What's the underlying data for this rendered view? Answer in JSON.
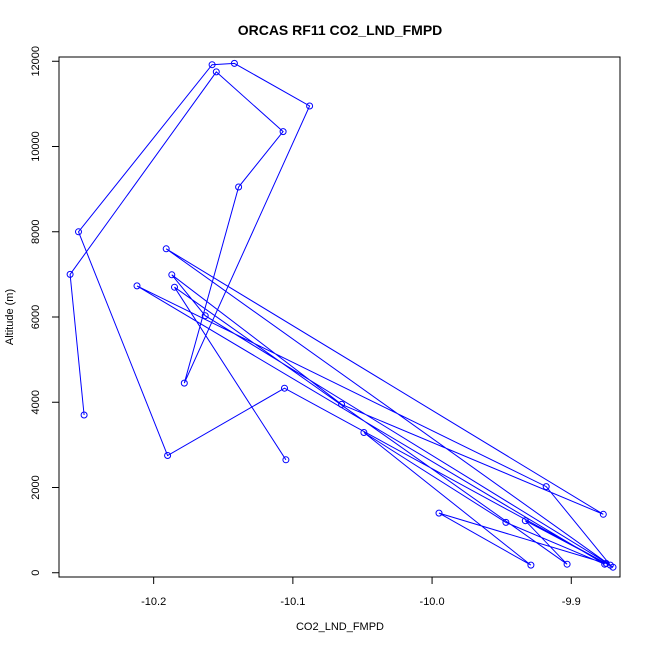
{
  "chart_data": {
    "type": "line",
    "title": "ORCAS RF11 CO2_LND_FMPD",
    "xlabel": "CO2_LND_FMPD",
    "ylabel": "Altitude (m)",
    "xlim": [
      -10.268,
      -9.865
    ],
    "ylim": [
      -100,
      12100
    ],
    "x_ticks": [
      -10.2,
      -10.1,
      -10.0,
      -9.9
    ],
    "x_tick_labels": [
      "-10.2",
      "-10.1",
      "-10.0",
      "-9.9"
    ],
    "y_ticks": [
      0,
      2000,
      4000,
      6000,
      8000,
      10000,
      12000
    ],
    "y_tick_labels": [
      "0",
      "2000",
      "4000",
      "6000",
      "8000",
      "10000",
      "12000"
    ],
    "grid": false,
    "line_color": "#0000ff",
    "marker": "open-circle",
    "series": [
      {
        "x": [
          -10.25,
          -10.26,
          -10.155,
          -10.107,
          -10.139,
          -10.178,
          -10.088,
          -10.142,
          -10.158,
          -10.254,
          -10.19,
          -10.106,
          -9.87,
          -10.191,
          -9.877,
          -10.065,
          -10.187,
          -10.163,
          -9.872,
          -9.918,
          -10.212,
          -9.876,
          -9.947,
          -10.049,
          -9.929,
          -9.995,
          -9.875,
          -9.933,
          -9.903,
          -10.185,
          -10.105
        ],
        "y": [
          3700,
          7000,
          11750,
          10350,
          9050,
          4450,
          10950,
          11950,
          11920,
          8000,
          2750,
          4330,
          130,
          7600,
          1370,
          3950,
          6990,
          6030,
          180,
          2020,
          6730,
          200,
          1180,
          3290,
          180,
          1400,
          220,
          1220,
          200,
          6700,
          2650
        ]
      }
    ]
  }
}
